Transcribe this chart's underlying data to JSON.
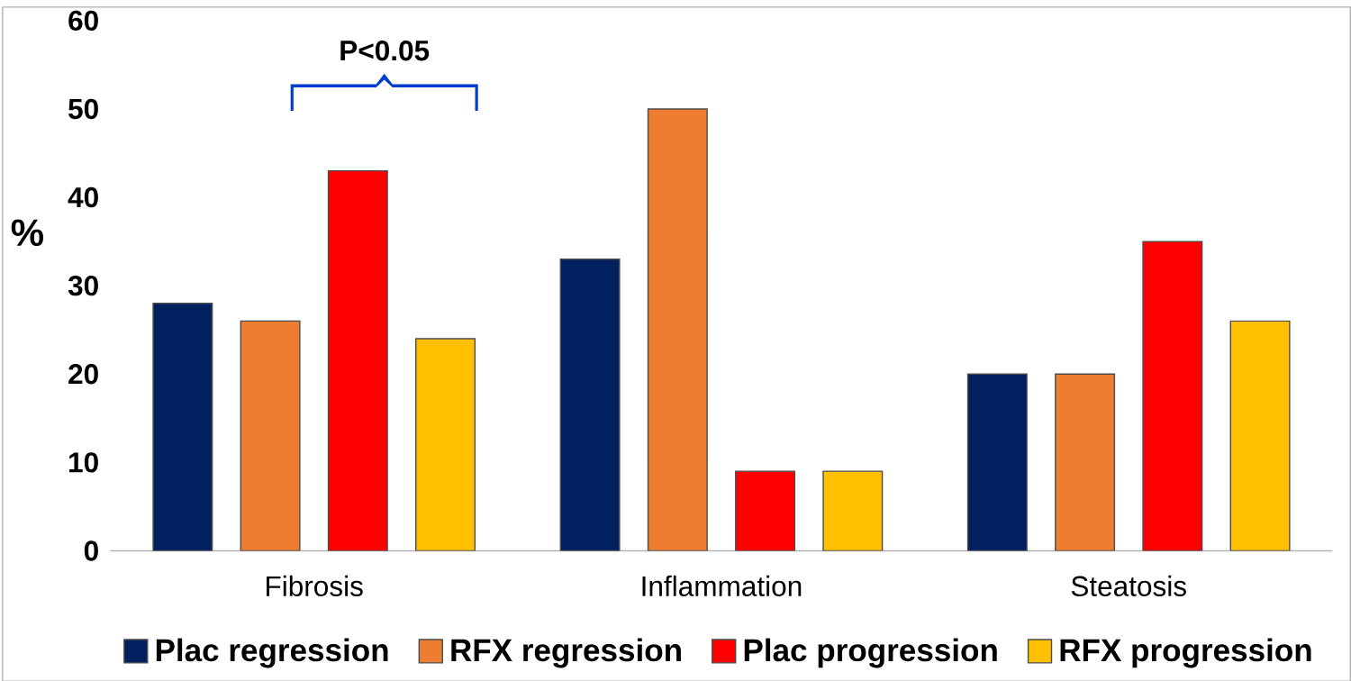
{
  "chart_data": {
    "type": "bar",
    "ylabel": "%",
    "categories": [
      "Fibrosis",
      "Inflammation",
      "Steatosis"
    ],
    "series": [
      {
        "name": "Plac regression",
        "color": "#002060",
        "values": [
          28,
          33,
          20
        ]
      },
      {
        "name": "RFX regression",
        "color": "#ED7D31",
        "values": [
          26,
          50,
          20
        ]
      },
      {
        "name": "Plac progression",
        "color": "#FF0000",
        "values": [
          43,
          9,
          35
        ]
      },
      {
        "name": "RFX progression",
        "color": "#FFC000",
        "values": [
          24,
          9,
          26
        ]
      }
    ],
    "ylim": [
      0,
      60
    ],
    "yticks": [
      0,
      10,
      20,
      30,
      40,
      50,
      60
    ],
    "grid": false,
    "legend": "bottom",
    "annotations": [
      "P<0.05"
    ]
  }
}
